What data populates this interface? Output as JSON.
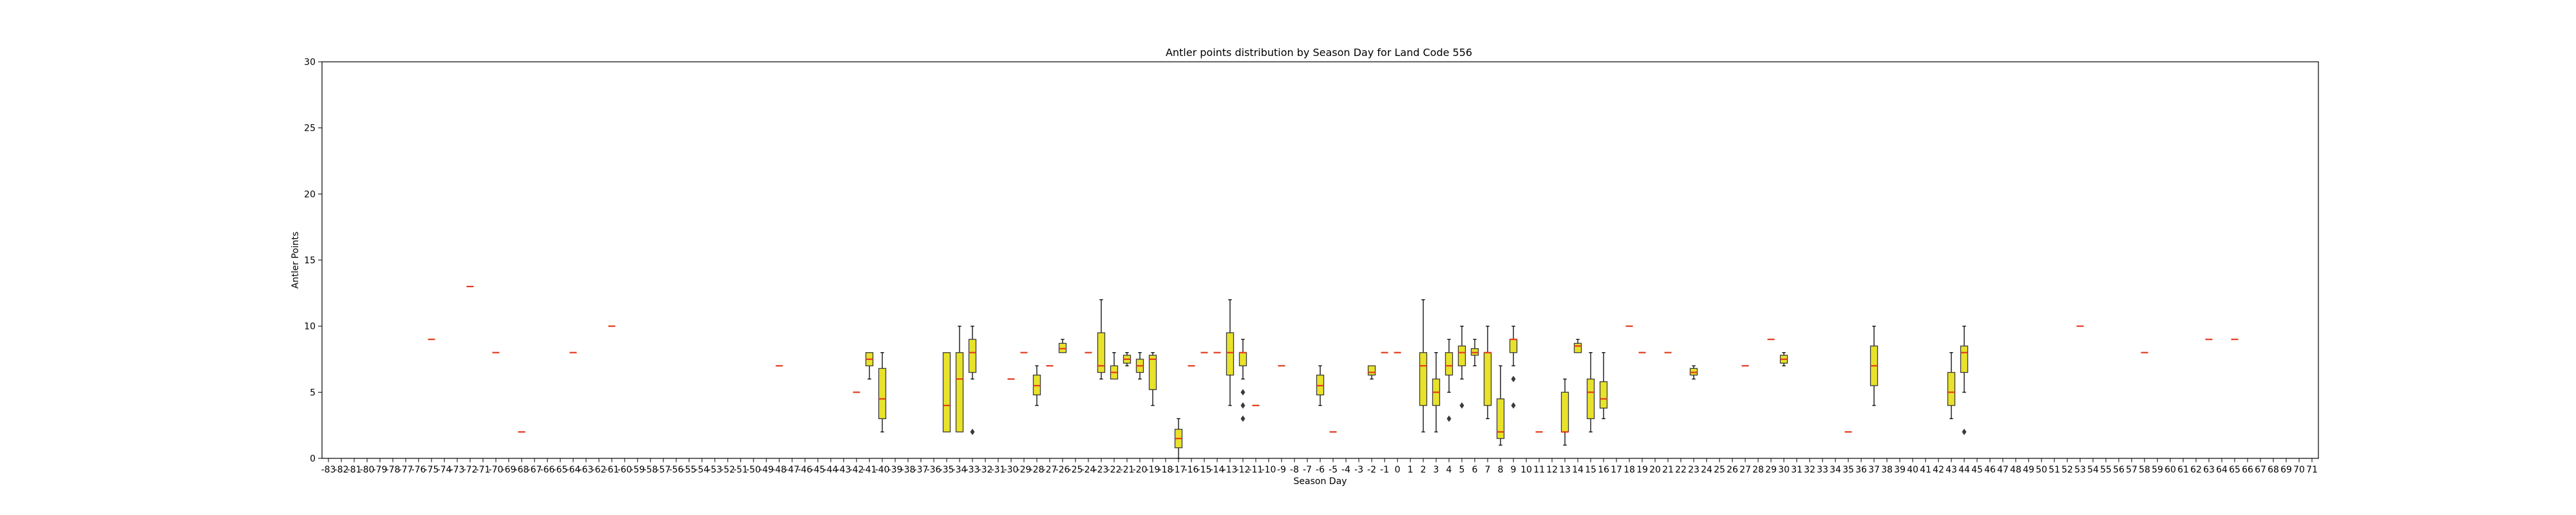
{
  "chart_data": {
    "type": "box",
    "title": "Antler points distribution by Season Day for Land Code 556",
    "xlabel": "Season Day",
    "ylabel": "Antler Points",
    "x_categories_range": [
      -83,
      71
    ],
    "ylim": [
      0,
      30
    ],
    "yticks": [
      0,
      5,
      10,
      15,
      20,
      25,
      30
    ],
    "grid": false,
    "legend": "none",
    "colors": {
      "box_fill": "#e8e22a",
      "median": "#e23b1e",
      "whisker": "#000000"
    },
    "boxes": [
      {
        "day": -75,
        "q1": 9,
        "median": 9,
        "q3": 9,
        "whislo": 9,
        "whishi": 9,
        "fliers": []
      },
      {
        "day": -72,
        "q1": 13,
        "median": 13,
        "q3": 13,
        "whislo": 13,
        "whishi": 13,
        "fliers": []
      },
      {
        "day": -70,
        "q1": 8,
        "median": 8,
        "q3": 8,
        "whislo": 8,
        "whishi": 8,
        "fliers": []
      },
      {
        "day": -68,
        "q1": 2,
        "median": 2,
        "q3": 2,
        "whislo": 2,
        "whishi": 2,
        "fliers": []
      },
      {
        "day": -64,
        "q1": 8,
        "median": 8,
        "q3": 8,
        "whislo": 8,
        "whishi": 8,
        "fliers": []
      },
      {
        "day": -61,
        "q1": 10,
        "median": 10,
        "q3": 10,
        "whislo": 10,
        "whishi": 10,
        "fliers": []
      },
      {
        "day": -48,
        "q1": 7,
        "median": 7,
        "q3": 7,
        "whislo": 7,
        "whishi": 7,
        "fliers": []
      },
      {
        "day": -42,
        "q1": 5,
        "median": 5,
        "q3": 5,
        "whislo": 5,
        "whishi": 5,
        "fliers": []
      },
      {
        "day": -41,
        "q1": 7,
        "median": 7.5,
        "q3": 8,
        "whislo": 6,
        "whishi": 8,
        "fliers": []
      },
      {
        "day": -40,
        "q1": 3,
        "median": 4.5,
        "q3": 6.8,
        "whislo": 2,
        "whishi": 8,
        "fliers": []
      },
      {
        "day": -35,
        "q1": 2,
        "median": 4,
        "q3": 8,
        "whislo": 2,
        "whishi": 8,
        "fliers": []
      },
      {
        "day": -34,
        "q1": 2,
        "median": 6,
        "q3": 8,
        "whislo": 2,
        "whishi": 10,
        "fliers": []
      },
      {
        "day": -33,
        "q1": 6.5,
        "median": 8,
        "q3": 9,
        "whislo": 6,
        "whishi": 10,
        "fliers": [
          2
        ]
      },
      {
        "day": -30,
        "q1": 6,
        "median": 6,
        "q3": 6,
        "whislo": 6,
        "whishi": 6,
        "fliers": []
      },
      {
        "day": -29,
        "q1": 8,
        "median": 8,
        "q3": 8,
        "whislo": 8,
        "whishi": 8,
        "fliers": []
      },
      {
        "day": -28,
        "q1": 4.8,
        "median": 5.5,
        "q3": 6.3,
        "whislo": 4,
        "whishi": 7,
        "fliers": []
      },
      {
        "day": -27,
        "q1": 7,
        "median": 7,
        "q3": 7,
        "whislo": 7,
        "whishi": 7,
        "fliers": []
      },
      {
        "day": -26,
        "q1": 8,
        "median": 8.3,
        "q3": 8.7,
        "whislo": 8,
        "whishi": 9,
        "fliers": []
      },
      {
        "day": -24,
        "q1": 8,
        "median": 8,
        "q3": 8,
        "whislo": 8,
        "whishi": 8,
        "fliers": []
      },
      {
        "day": -23,
        "q1": 6.5,
        "median": 7,
        "q3": 9.5,
        "whislo": 6,
        "whishi": 12,
        "fliers": []
      },
      {
        "day": -22,
        "q1": 6,
        "median": 6.5,
        "q3": 7,
        "whislo": 6,
        "whishi": 8,
        "fliers": []
      },
      {
        "day": -21,
        "q1": 7.2,
        "median": 7.5,
        "q3": 7.8,
        "whislo": 7,
        "whishi": 8,
        "fliers": []
      },
      {
        "day": -20,
        "q1": 6.5,
        "median": 7,
        "q3": 7.5,
        "whislo": 6,
        "whishi": 8,
        "fliers": []
      },
      {
        "day": -19,
        "q1": 5.2,
        "median": 7.5,
        "q3": 7.8,
        "whislo": 4,
        "whishi": 8,
        "fliers": []
      },
      {
        "day": -17,
        "q1": 0.8,
        "median": 1.5,
        "q3": 2.2,
        "whislo": 0,
        "whishi": 3,
        "fliers": []
      },
      {
        "day": -16,
        "q1": 7,
        "median": 7,
        "q3": 7,
        "whislo": 7,
        "whishi": 7,
        "fliers": []
      },
      {
        "day": -15,
        "q1": 8,
        "median": 8,
        "q3": 8,
        "whislo": 8,
        "whishi": 8,
        "fliers": []
      },
      {
        "day": -14,
        "q1": 8,
        "median": 8,
        "q3": 8,
        "whislo": 8,
        "whishi": 8,
        "fliers": []
      },
      {
        "day": -13,
        "q1": 6.3,
        "median": 8,
        "q3": 9.5,
        "whislo": 4,
        "whishi": 12,
        "fliers": []
      },
      {
        "day": -12,
        "q1": 7,
        "median": 8,
        "q3": 8,
        "whislo": 6,
        "whishi": 9,
        "fliers": [
          5,
          4,
          3
        ]
      },
      {
        "day": -11,
        "q1": 4,
        "median": 4,
        "q3": 4,
        "whislo": 4,
        "whishi": 4,
        "fliers": []
      },
      {
        "day": -9,
        "q1": 7,
        "median": 7,
        "q3": 7,
        "whislo": 7,
        "whishi": 7,
        "fliers": []
      },
      {
        "day": -6,
        "q1": 4.8,
        "median": 5.5,
        "q3": 6.3,
        "whislo": 4,
        "whishi": 7,
        "fliers": []
      },
      {
        "day": -5,
        "q1": 2,
        "median": 2,
        "q3": 2,
        "whislo": 2,
        "whishi": 2,
        "fliers": []
      },
      {
        "day": -2,
        "q1": 6.3,
        "median": 6.5,
        "q3": 7,
        "whislo": 6,
        "whishi": 7,
        "fliers": []
      },
      {
        "day": -1,
        "q1": 8,
        "median": 8,
        "q3": 8,
        "whislo": 8,
        "whishi": 8,
        "fliers": []
      },
      {
        "day": 0,
        "q1": 8,
        "median": 8,
        "q3": 8,
        "whislo": 8,
        "whishi": 8,
        "fliers": []
      },
      {
        "day": 2,
        "q1": 4,
        "median": 7,
        "q3": 8,
        "whislo": 2,
        "whishi": 12,
        "fliers": []
      },
      {
        "day": 3,
        "q1": 4,
        "median": 5,
        "q3": 6,
        "whislo": 2,
        "whishi": 8,
        "fliers": []
      },
      {
        "day": 4,
        "q1": 6.3,
        "median": 7,
        "q3": 8,
        "whislo": 5,
        "whishi": 9,
        "fliers": [
          3
        ]
      },
      {
        "day": 5,
        "q1": 7,
        "median": 8,
        "q3": 8.5,
        "whislo": 6,
        "whishi": 10,
        "fliers": [
          4
        ]
      },
      {
        "day": 6,
        "q1": 7.8,
        "median": 8,
        "q3": 8.3,
        "whislo": 7,
        "whishi": 9,
        "fliers": []
      },
      {
        "day": 7,
        "q1": 4,
        "median": 8,
        "q3": 8,
        "whislo": 3,
        "whishi": 10,
        "fliers": []
      },
      {
        "day": 8,
        "q1": 1.5,
        "median": 2,
        "q3": 4.5,
        "whislo": 1,
        "whishi": 7,
        "fliers": []
      },
      {
        "day": 9,
        "q1": 8,
        "median": 9,
        "q3": 9,
        "whislo": 7,
        "whishi": 10,
        "fliers": [
          6,
          4
        ]
      },
      {
        "day": 11,
        "q1": 2,
        "median": 2,
        "q3": 2,
        "whislo": 2,
        "whishi": 2,
        "fliers": []
      },
      {
        "day": 13,
        "q1": 2,
        "median": 2,
        "q3": 5,
        "whislo": 1,
        "whishi": 6,
        "fliers": []
      },
      {
        "day": 14,
        "q1": 8,
        "median": 8.5,
        "q3": 8.7,
        "whislo": 8,
        "whishi": 9,
        "fliers": []
      },
      {
        "day": 15,
        "q1": 3,
        "median": 5,
        "q3": 6,
        "whislo": 2,
        "whishi": 8,
        "fliers": []
      },
      {
        "day": 16,
        "q1": 3.8,
        "median": 4.5,
        "q3": 5.8,
        "whislo": 3,
        "whishi": 8,
        "fliers": []
      },
      {
        "day": 18,
        "q1": 10,
        "median": 10,
        "q3": 10,
        "whislo": 10,
        "whishi": 10,
        "fliers": []
      },
      {
        "day": 19,
        "q1": 8,
        "median": 8,
        "q3": 8,
        "whislo": 8,
        "whishi": 8,
        "fliers": []
      },
      {
        "day": 21,
        "q1": 8,
        "median": 8,
        "q3": 8,
        "whislo": 8,
        "whishi": 8,
        "fliers": []
      },
      {
        "day": 23,
        "q1": 6.3,
        "median": 6.5,
        "q3": 6.8,
        "whislo": 6,
        "whishi": 7,
        "fliers": []
      },
      {
        "day": 27,
        "q1": 7,
        "median": 7,
        "q3": 7,
        "whislo": 7,
        "whishi": 7,
        "fliers": []
      },
      {
        "day": 29,
        "q1": 9,
        "median": 9,
        "q3": 9,
        "whislo": 9,
        "whishi": 9,
        "fliers": []
      },
      {
        "day": 30,
        "q1": 7.2,
        "median": 7.5,
        "q3": 7.8,
        "whislo": 7,
        "whishi": 8,
        "fliers": []
      },
      {
        "day": 35,
        "q1": 2,
        "median": 2,
        "q3": 2,
        "whislo": 2,
        "whishi": 2,
        "fliers": []
      },
      {
        "day": 37,
        "q1": 5.5,
        "median": 7,
        "q3": 8.5,
        "whislo": 4,
        "whishi": 10,
        "fliers": []
      },
      {
        "day": 43,
        "q1": 4,
        "median": 5,
        "q3": 6.5,
        "whislo": 3,
        "whishi": 8,
        "fliers": []
      },
      {
        "day": 44,
        "q1": 6.5,
        "median": 8,
        "q3": 8.5,
        "whislo": 5,
        "whishi": 10,
        "fliers": [
          2
        ]
      },
      {
        "day": 53,
        "q1": 10,
        "median": 10,
        "q3": 10,
        "whislo": 10,
        "whishi": 10,
        "fliers": []
      },
      {
        "day": 58,
        "q1": 8,
        "median": 8,
        "q3": 8,
        "whislo": 8,
        "whishi": 8,
        "fliers": []
      },
      {
        "day": 63,
        "q1": 9,
        "median": 9,
        "q3": 9,
        "whislo": 9,
        "whishi": 9,
        "fliers": []
      },
      {
        "day": 65,
        "q1": 9,
        "median": 9,
        "q3": 9,
        "whislo": 9,
        "whishi": 9,
        "fliers": []
      }
    ]
  }
}
